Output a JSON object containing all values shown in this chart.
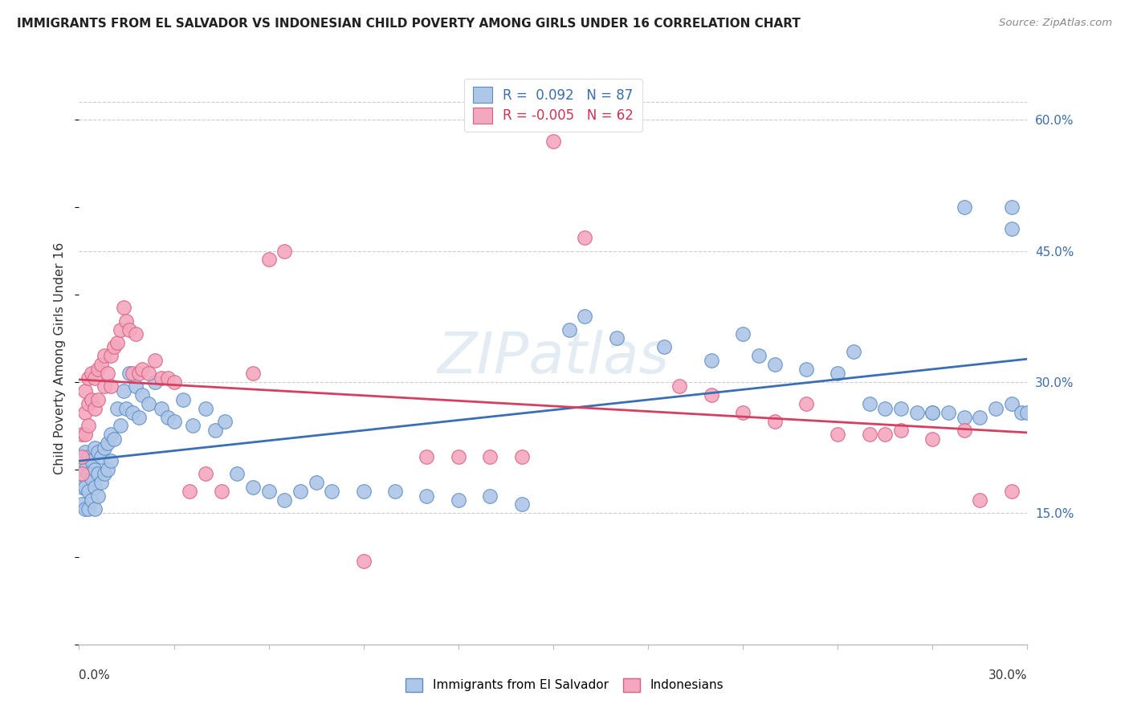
{
  "title": "IMMIGRANTS FROM EL SALVADOR VS INDONESIAN CHILD POVERTY AMONG GIRLS UNDER 16 CORRELATION CHART",
  "source": "Source: ZipAtlas.com",
  "ylabel": "Child Poverty Among Girls Under 16",
  "ytick_vals": [
    0.15,
    0.3,
    0.45,
    0.6
  ],
  "ymax": 0.655,
  "ymin": 0.0,
  "xmax": 0.3,
  "xmin": 0.0,
  "color_blue": "#aec6e8",
  "color_pink": "#f4a8bf",
  "scatter_blue_edge": "#5b8ec4",
  "scatter_pink_edge": "#d96080",
  "trendline_blue": "#3b6fb5",
  "trendline_pink": "#d64060",
  "watermark": "ZIPatlas",
  "legend_label_blue": "Immigrants from El Salvador",
  "legend_label_pink": "Indonesians",
  "blue_x": [
    0.001,
    0.001,
    0.001,
    0.002,
    0.002,
    0.002,
    0.002,
    0.003,
    0.003,
    0.003,
    0.003,
    0.004,
    0.004,
    0.004,
    0.005,
    0.005,
    0.005,
    0.005,
    0.006,
    0.006,
    0.006,
    0.007,
    0.007,
    0.008,
    0.008,
    0.009,
    0.009,
    0.01,
    0.01,
    0.011,
    0.012,
    0.013,
    0.014,
    0.015,
    0.016,
    0.017,
    0.018,
    0.019,
    0.02,
    0.022,
    0.024,
    0.026,
    0.028,
    0.03,
    0.033,
    0.036,
    0.04,
    0.043,
    0.046,
    0.05,
    0.055,
    0.06,
    0.065,
    0.07,
    0.075,
    0.08,
    0.09,
    0.1,
    0.11,
    0.12,
    0.13,
    0.14,
    0.155,
    0.16,
    0.17,
    0.185,
    0.2,
    0.21,
    0.215,
    0.22,
    0.23,
    0.24,
    0.245,
    0.25,
    0.255,
    0.26,
    0.265,
    0.27,
    0.275,
    0.28,
    0.285,
    0.29,
    0.295,
    0.295,
    0.298,
    0.3,
    0.295,
    0.28,
    0.27
  ],
  "blue_y": [
    0.2,
    0.18,
    0.16,
    0.22,
    0.2,
    0.18,
    0.155,
    0.215,
    0.195,
    0.175,
    0.155,
    0.21,
    0.19,
    0.165,
    0.225,
    0.2,
    0.18,
    0.155,
    0.22,
    0.195,
    0.17,
    0.215,
    0.185,
    0.225,
    0.195,
    0.23,
    0.2,
    0.24,
    0.21,
    0.235,
    0.27,
    0.25,
    0.29,
    0.27,
    0.31,
    0.265,
    0.295,
    0.26,
    0.285,
    0.275,
    0.3,
    0.27,
    0.26,
    0.255,
    0.28,
    0.25,
    0.27,
    0.245,
    0.255,
    0.195,
    0.18,
    0.175,
    0.165,
    0.175,
    0.185,
    0.175,
    0.175,
    0.175,
    0.17,
    0.165,
    0.17,
    0.16,
    0.36,
    0.375,
    0.35,
    0.34,
    0.325,
    0.355,
    0.33,
    0.32,
    0.315,
    0.31,
    0.335,
    0.275,
    0.27,
    0.27,
    0.265,
    0.265,
    0.265,
    0.26,
    0.26,
    0.27,
    0.5,
    0.275,
    0.265,
    0.265,
    0.475,
    0.5,
    0.265
  ],
  "pink_x": [
    0.001,
    0.001,
    0.001,
    0.002,
    0.002,
    0.002,
    0.003,
    0.003,
    0.003,
    0.004,
    0.004,
    0.005,
    0.005,
    0.006,
    0.006,
    0.007,
    0.008,
    0.008,
    0.009,
    0.01,
    0.01,
    0.011,
    0.012,
    0.013,
    0.014,
    0.015,
    0.016,
    0.017,
    0.018,
    0.019,
    0.02,
    0.022,
    0.024,
    0.026,
    0.028,
    0.03,
    0.035,
    0.04,
    0.045,
    0.055,
    0.06,
    0.065,
    0.09,
    0.11,
    0.12,
    0.13,
    0.14,
    0.15,
    0.16,
    0.19,
    0.2,
    0.21,
    0.22,
    0.23,
    0.24,
    0.25,
    0.255,
    0.26,
    0.27,
    0.28,
    0.285,
    0.295
  ],
  "pink_y": [
    0.24,
    0.215,
    0.195,
    0.29,
    0.265,
    0.24,
    0.305,
    0.275,
    0.25,
    0.31,
    0.28,
    0.305,
    0.27,
    0.315,
    0.28,
    0.32,
    0.33,
    0.295,
    0.31,
    0.33,
    0.295,
    0.34,
    0.345,
    0.36,
    0.385,
    0.37,
    0.36,
    0.31,
    0.355,
    0.31,
    0.315,
    0.31,
    0.325,
    0.305,
    0.305,
    0.3,
    0.175,
    0.195,
    0.175,
    0.31,
    0.44,
    0.45,
    0.095,
    0.215,
    0.215,
    0.215,
    0.215,
    0.575,
    0.465,
    0.295,
    0.285,
    0.265,
    0.255,
    0.275,
    0.24,
    0.24,
    0.24,
    0.245,
    0.235,
    0.245,
    0.165,
    0.175
  ]
}
